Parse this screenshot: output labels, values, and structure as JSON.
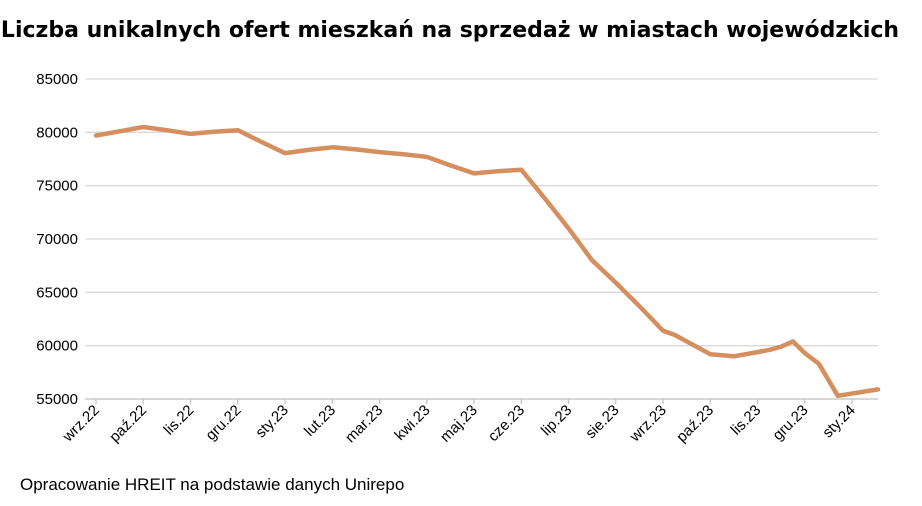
{
  "source_note": "Opracowanie HREIT na podstawie danych Unirepo",
  "chart_data": {
    "type": "line",
    "title": "Liczba unikalnych ofert mieszkań na sprzedaż w miastach wojewódzkich",
    "xlabel": "",
    "ylabel": "",
    "ylim": [
      55000,
      85000
    ],
    "yticks": [
      55000,
      60000,
      65000,
      70000,
      75000,
      80000,
      85000
    ],
    "grid": true,
    "legend": "none",
    "line_color": "#D58F5E",
    "grid_color": "#D9D9D9",
    "categories": [
      "wrz.22",
      "paź.22",
      "lis.22",
      "gru.22",
      "sty.23",
      "lut.23",
      "mar.23",
      "kwi.23",
      "maj.23",
      "cze.23",
      "lip.23",
      "sie.23",
      "wrz.23",
      "paź.23",
      "lis.23",
      "gru.23",
      "sty.24"
    ],
    "series": [
      {
        "x": [
          0,
          0.5,
          1,
          1.5,
          2,
          2.5,
          3,
          3.5,
          4,
          4.5,
          5,
          5.5,
          6,
          6.5,
          7,
          7.5,
          8,
          8.5,
          9,
          9.5,
          10,
          10.5,
          11,
          11.5,
          12,
          12.25,
          12.5,
          13,
          13.5,
          14,
          14.25,
          14.5,
          14.75,
          15,
          15.3,
          15.7,
          16
        ],
        "values": [
          79700,
          80100,
          80500,
          80200,
          79850,
          80050,
          80200,
          79100,
          78050,
          78350,
          78600,
          78400,
          78150,
          77950,
          77700,
          76900,
          76150,
          76350,
          76500,
          73800,
          71000,
          68000,
          65900,
          63700,
          61400,
          61000,
          60400,
          59200,
          59000,
          59400,
          59600,
          59900,
          60400,
          59300,
          58300,
          55300,
          55900
        ]
      }
    ]
  }
}
